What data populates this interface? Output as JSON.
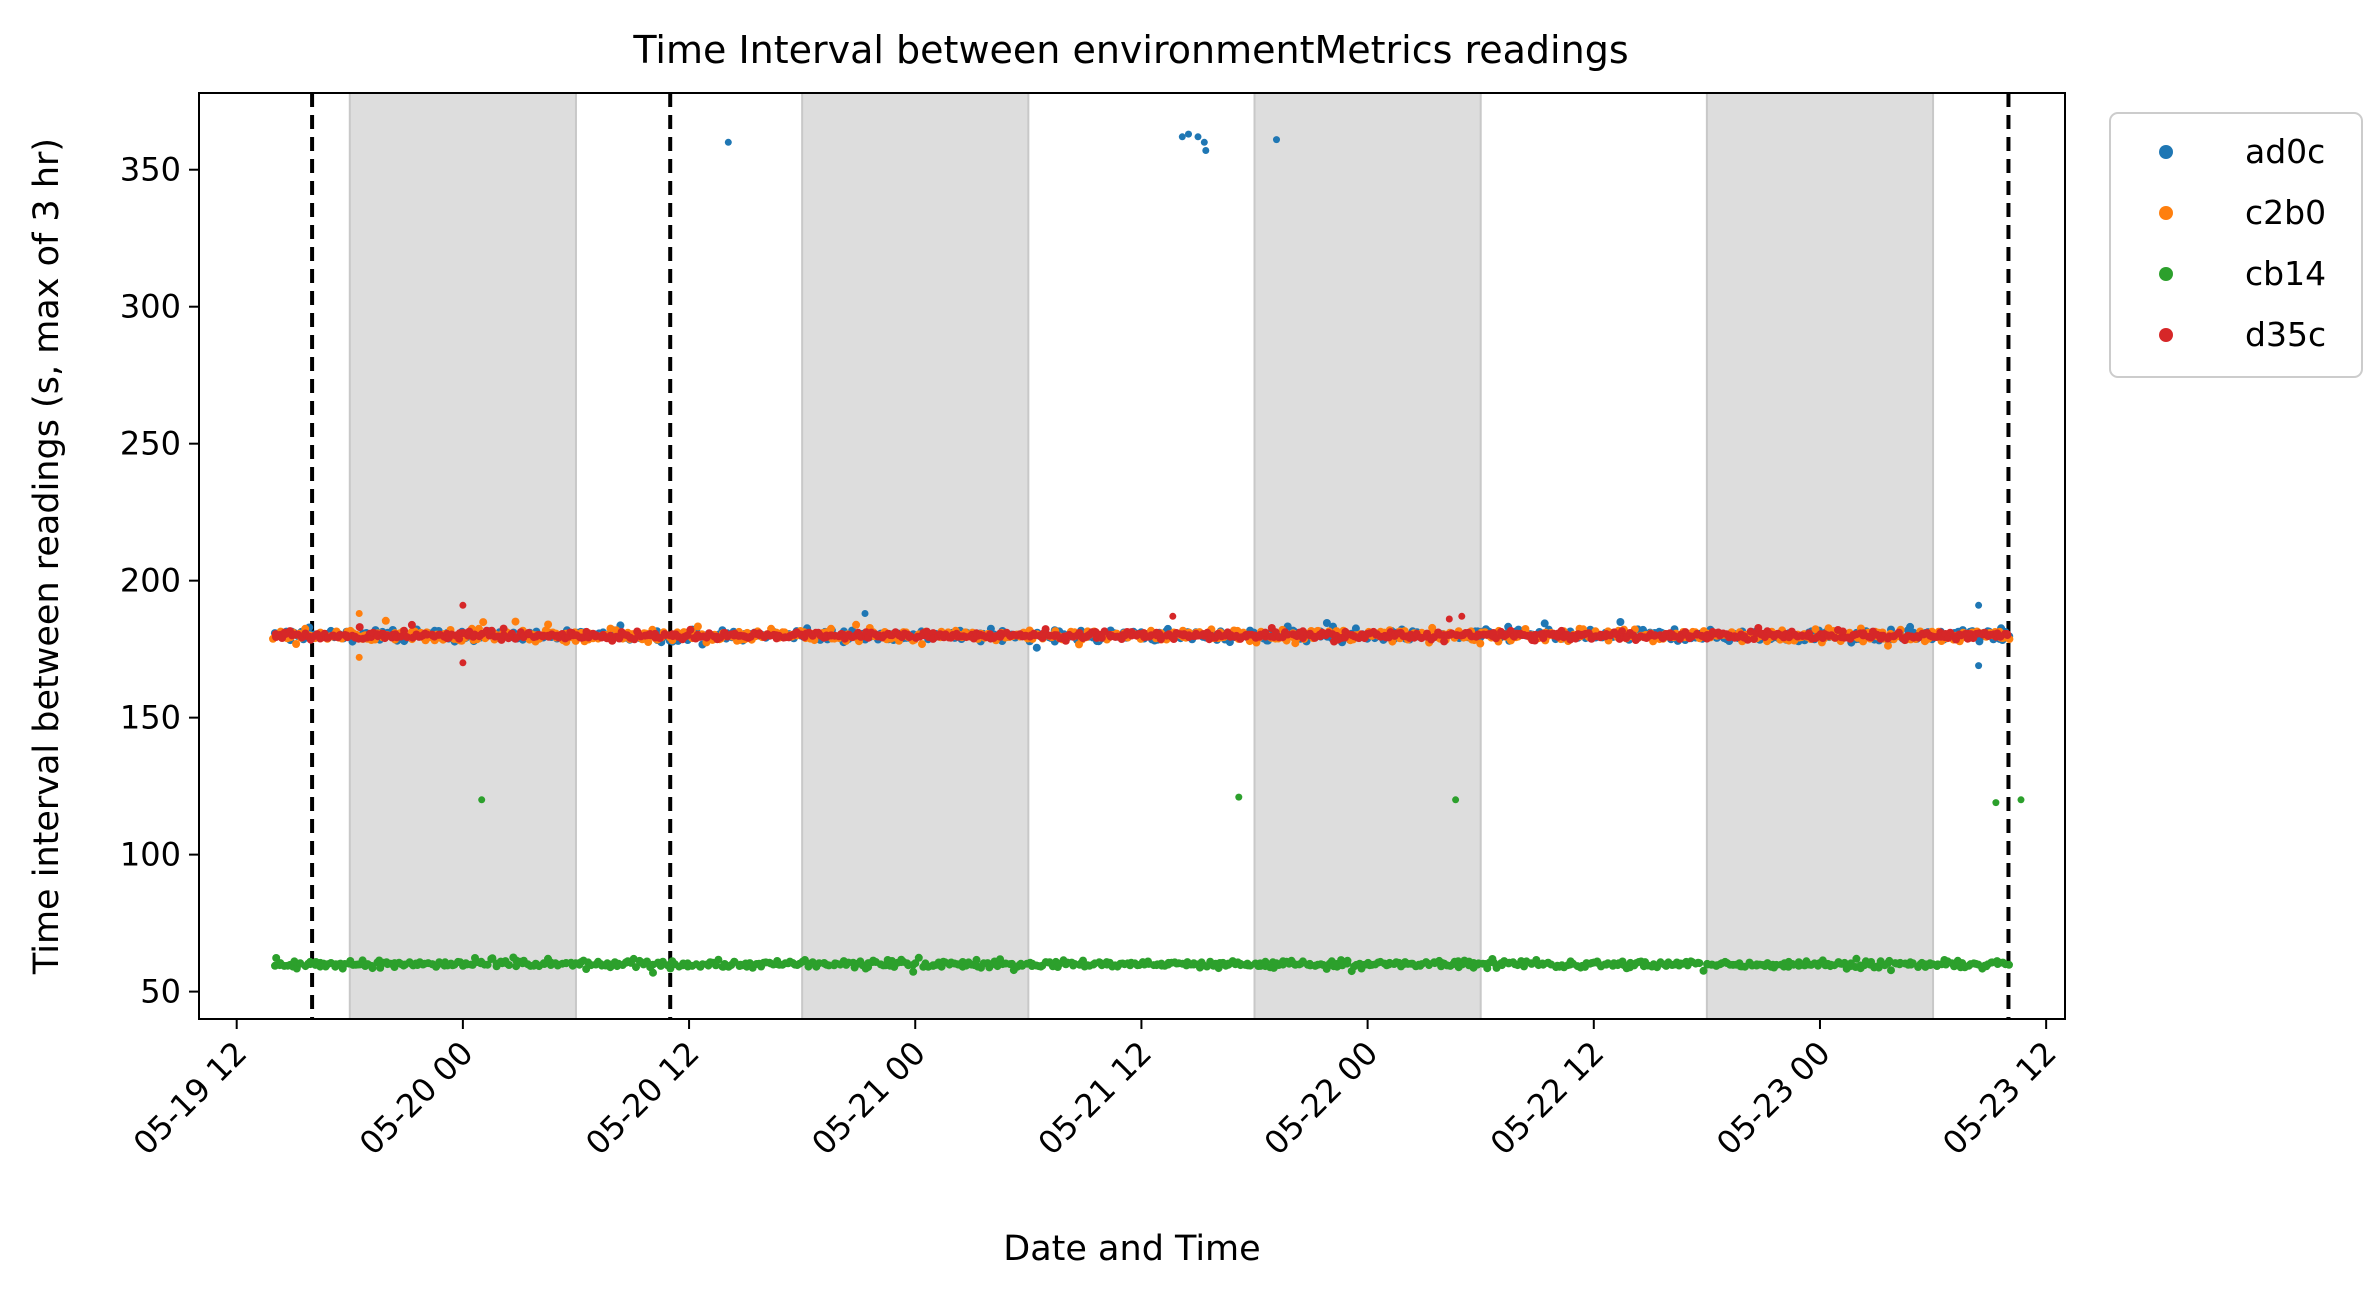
{
  "chart_data": {
    "type": "scatter",
    "title": "Time Interval between environmentMetrics readings",
    "xlabel": "Date and Time",
    "ylabel": "Time interval between readings (s, max of 3 hr)",
    "xlim": [
      "2024-05-19 10:00",
      "2024-05-23 13:00"
    ],
    "ylim": [
      40,
      378
    ],
    "x_ticks": [
      {
        "value": "2024-05-19 12:00",
        "label": "05-19 12"
      },
      {
        "value": "2024-05-20 00:00",
        "label": "05-20 00"
      },
      {
        "value": "2024-05-20 12:00",
        "label": "05-20 12"
      },
      {
        "value": "2024-05-21 00:00",
        "label": "05-21 00"
      },
      {
        "value": "2024-05-21 12:00",
        "label": "05-21 12"
      },
      {
        "value": "2024-05-22 00:00",
        "label": "05-22 00"
      },
      {
        "value": "2024-05-22 12:00",
        "label": "05-22 12"
      },
      {
        "value": "2024-05-23 00:00",
        "label": "05-23 00"
      },
      {
        "value": "2024-05-23 12:00",
        "label": "05-23 12"
      }
    ],
    "y_ticks": [
      50,
      100,
      150,
      200,
      250,
      300,
      350
    ],
    "grid": false,
    "legend_position": "outside-top-right",
    "shaded_spans": [
      [
        "2024-05-19 18:00",
        "2024-05-20 06:00"
      ],
      [
        "2024-05-20 18:00",
        "2024-05-21 06:00"
      ],
      [
        "2024-05-21 18:00",
        "2024-05-22 06:00"
      ],
      [
        "2024-05-22 18:00",
        "2024-05-23 06:00"
      ]
    ],
    "shade_color": "#dddddd",
    "vlines": {
      "values": [
        "2024-05-19 16:00",
        "2024-05-20 11:00",
        "2024-05-23 10:00"
      ],
      "style": "dashed",
      "color": "#000000"
    },
    "series": [
      {
        "name": "ad0c",
        "color": "#1f77b4",
        "x_range": [
          "2024-05-19 14:00",
          "2024-05-23 10:00"
        ],
        "baseline": 180,
        "spread": 3,
        "outliers": [
          {
            "x": "2024-05-20 14:05",
            "y": 360
          },
          {
            "x": "2024-05-21 14:10",
            "y": 362
          },
          {
            "x": "2024-05-21 14:30",
            "y": 363
          },
          {
            "x": "2024-05-21 15:00",
            "y": 362
          },
          {
            "x": "2024-05-21 15:20",
            "y": 360
          },
          {
            "x": "2024-05-21 15:25",
            "y": 357
          },
          {
            "x": "2024-05-21 19:10",
            "y": 361
          },
          {
            "x": "2024-05-20 21:20",
            "y": 188
          },
          {
            "x": "2024-05-23 08:25",
            "y": 191
          },
          {
            "x": "2024-05-23 08:25",
            "y": 169
          }
        ]
      },
      {
        "name": "c2b0",
        "color": "#ff7f0e",
        "x_range": [
          "2024-05-19 14:00",
          "2024-05-23 10:00"
        ],
        "baseline": 180,
        "spread": 3,
        "outliers": [
          {
            "x": "2024-05-19 18:30",
            "y": 188
          },
          {
            "x": "2024-05-19 18:30",
            "y": 172
          }
        ]
      },
      {
        "name": "cb14",
        "color": "#2ca02c",
        "x_range": [
          "2024-05-19 14:00",
          "2024-05-23 10:00"
        ],
        "baseline": 60,
        "spread": 2,
        "outliers": [
          {
            "x": "2024-05-20 01:00",
            "y": 120
          },
          {
            "x": "2024-05-21 17:10",
            "y": 121
          },
          {
            "x": "2024-05-22 04:40",
            "y": 120
          },
          {
            "x": "2024-05-23 09:20",
            "y": 119
          },
          {
            "x": "2024-05-23 10:40",
            "y": 120
          }
        ]
      },
      {
        "name": "d35c",
        "color": "#d62728",
        "x_range": [
          "2024-05-19 14:00",
          "2024-05-23 10:00"
        ],
        "baseline": 180,
        "spread": 2,
        "outliers": [
          {
            "x": "2024-05-20 00:00",
            "y": 191
          },
          {
            "x": "2024-05-20 00:00",
            "y": 170
          },
          {
            "x": "2024-05-21 13:40",
            "y": 187
          },
          {
            "x": "2024-05-22 05:00",
            "y": 187
          },
          {
            "x": "2024-05-22 04:20",
            "y": 186
          }
        ]
      }
    ]
  }
}
